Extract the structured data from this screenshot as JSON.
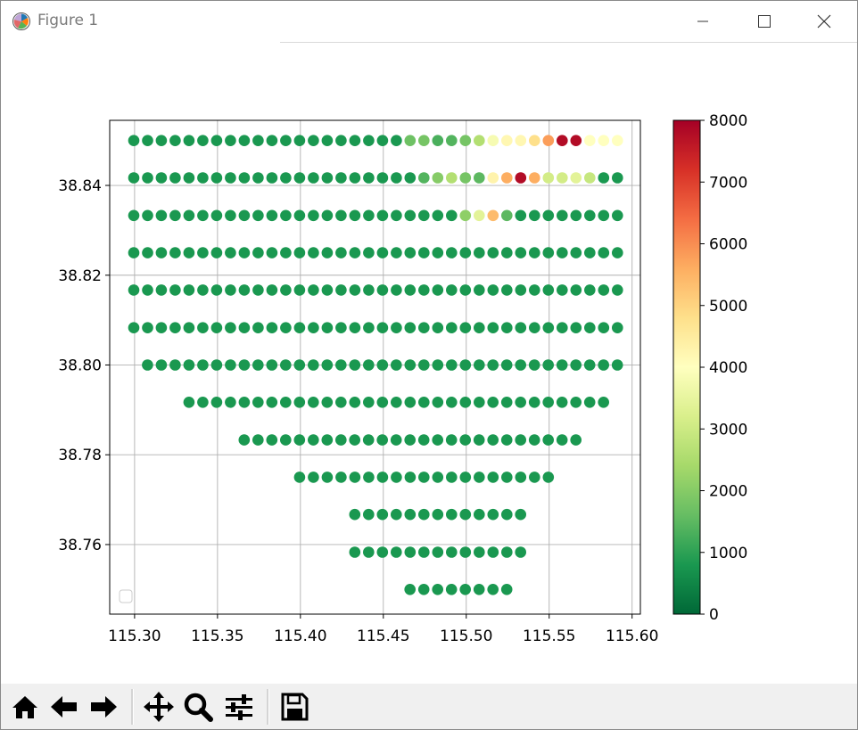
{
  "window": {
    "title": "Figure 1"
  },
  "colors": {
    "colormap": [
      "#006837",
      "#1a9850",
      "#66bd63",
      "#a6d96a",
      "#d9ef8b",
      "#ffffbf",
      "#fee08b",
      "#fdae61",
      "#f46d43",
      "#d73027",
      "#a50026"
    ],
    "grid": "#b0b0b0",
    "axis": "#000000",
    "toolbar_bg": "#f0f0f0"
  },
  "toolbar": {
    "buttons": [
      {
        "name": "home-button",
        "icon": "home-icon"
      },
      {
        "name": "back-button",
        "icon": "arrow-left-icon"
      },
      {
        "name": "forward-button",
        "icon": "arrow-right-icon"
      },
      {
        "name": "pan-button",
        "icon": "move-icon"
      },
      {
        "name": "zoom-button",
        "icon": "magnifier-icon"
      },
      {
        "name": "configure-subplots-button",
        "icon": "sliders-icon"
      },
      {
        "name": "save-button",
        "icon": "floppy-disk-icon"
      }
    ]
  },
  "chart_data": {
    "type": "scatter",
    "title": "",
    "xlabel": "",
    "ylabel": "",
    "xlim": [
      115.285,
      115.605
    ],
    "ylim": [
      38.7445,
      38.8545
    ],
    "xticks": [
      115.3,
      115.35,
      115.4,
      115.45,
      115.5,
      115.55,
      115.6
    ],
    "xtick_labels": [
      "115.30",
      "115.35",
      "115.40",
      "115.45",
      "115.50",
      "115.55",
      "115.60"
    ],
    "yticks": [
      38.76,
      38.78,
      38.8,
      38.82,
      38.84
    ],
    "ytick_labels": [
      "38.76",
      "38.78",
      "38.80",
      "38.82",
      "38.84"
    ],
    "grid": true,
    "legend": "lower-left (empty)",
    "colorbar": {
      "range": [
        0,
        8000
      ],
      "ticks": [
        0,
        1000,
        2000,
        3000,
        4000,
        5000,
        6000,
        7000,
        8000
      ],
      "tick_labels": [
        "0",
        "1000",
        "2000",
        "3000",
        "4000",
        "5000",
        "6000",
        "7000",
        "8000"
      ],
      "colormap": "RdYlGn_r"
    },
    "x_step": 0.008333,
    "rows": [
      {
        "y": 38.85,
        "x_start": 115.2995,
        "count": 36,
        "default": 800,
        "overrides": {
          "20": 1700,
          "21": 1800,
          "22": 1300,
          "23": 1400,
          "24": 1800,
          "25": 2600,
          "26": 3800,
          "27": 4200,
          "28": 4200,
          "29": 4800,
          "30": 5800,
          "31": 7800,
          "32": 7800,
          "33": 4000,
          "34": 4000,
          "35": 4000
        }
      },
      {
        "y": 38.8417,
        "x_start": 115.2995,
        "count": 36,
        "default": 800,
        "overrides": {
          "21": 1400,
          "22": 2000,
          "23": 2600,
          "24": 1800,
          "25": 1500,
          "26": 4300,
          "27": 5600,
          "28": 7800,
          "29": 5600,
          "30": 3100,
          "31": 3100,
          "32": 3400,
          "33": 2900
        }
      },
      {
        "y": 38.8333,
        "x_start": 115.2995,
        "count": 36,
        "default": 800,
        "overrides": {
          "24": 2100,
          "25": 3400,
          "26": 5400,
          "27": 1500
        }
      },
      {
        "y": 38.825,
        "x_start": 115.2995,
        "count": 36,
        "default": 800,
        "overrides": {}
      },
      {
        "y": 38.8167,
        "x_start": 115.2995,
        "count": 36,
        "default": 800,
        "overrides": {}
      },
      {
        "y": 38.8083,
        "x_start": 115.2995,
        "count": 36,
        "default": 800,
        "overrides": {}
      },
      {
        "y": 38.8,
        "x_start": 115.3078,
        "count": 35,
        "default": 800,
        "overrides": {}
      },
      {
        "y": 38.7917,
        "x_start": 115.3328,
        "count": 31,
        "default": 800,
        "overrides": {}
      },
      {
        "y": 38.7833,
        "x_start": 115.3661,
        "count": 25,
        "default": 800,
        "overrides": {}
      },
      {
        "y": 38.775,
        "x_start": 115.3995,
        "count": 19,
        "default": 800,
        "overrides": {}
      },
      {
        "y": 38.7667,
        "x_start": 115.4328,
        "count": 13,
        "default": 800,
        "overrides": {}
      },
      {
        "y": 38.7583,
        "x_start": 115.4328,
        "count": 13,
        "default": 800,
        "overrides": {}
      },
      {
        "y": 38.75,
        "x_start": 115.4661,
        "count": 8,
        "default": 800,
        "overrides": {}
      }
    ]
  }
}
